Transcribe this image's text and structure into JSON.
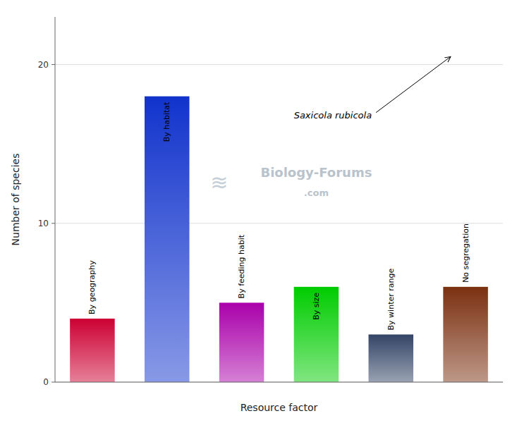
{
  "chart_data": {
    "type": "bar",
    "categories": [
      "By geography",
      "By habitat",
      "By feeding habit",
      "By size",
      "By winter range",
      "No segregation"
    ],
    "values": [
      4,
      18,
      5,
      6,
      3,
      6
    ],
    "colors": [
      "#cc0033",
      "#1133cc",
      "#aa00aa",
      "#00cc00",
      "#334466",
      "#7B3010"
    ],
    "ylabel": "Number of species",
    "xlabel": "Resource factor",
    "ylim": [
      0,
      23
    ],
    "yticks": [
      0,
      10,
      20
    ],
    "grid": true,
    "tick_labels": "y",
    "annotations": [
      "Saxicola rubicola",
      "Biology-Forums",
      ".com",
      "≋"
    ]
  }
}
